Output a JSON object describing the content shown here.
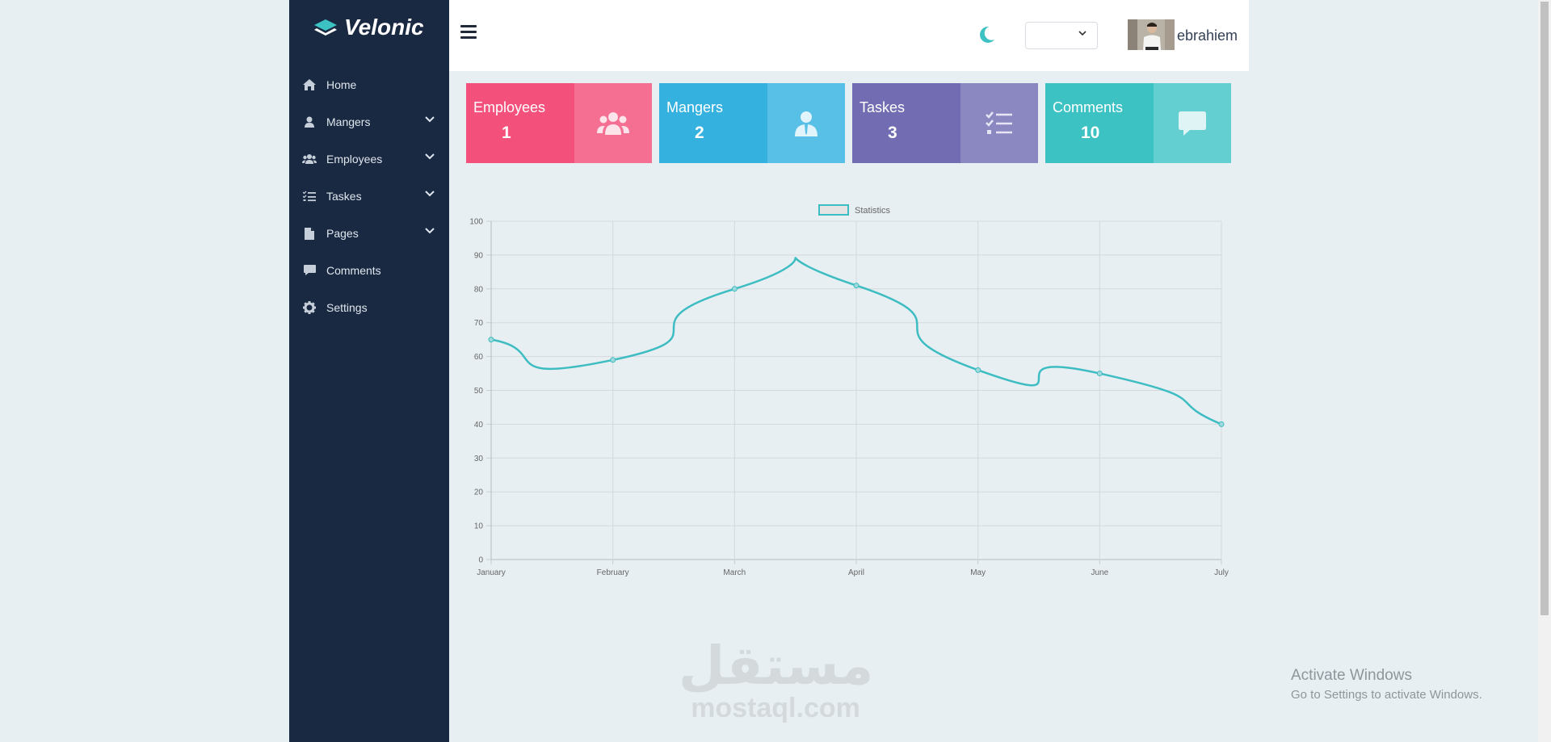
{
  "brand": {
    "name": "Velonic"
  },
  "sidebar": {
    "items": [
      {
        "label": "Home",
        "icon": "home-icon",
        "has_submenu": false
      },
      {
        "label": "Mangers",
        "icon": "user-icon",
        "has_submenu": true
      },
      {
        "label": "Employees",
        "icon": "users-icon",
        "has_submenu": true
      },
      {
        "label": "Taskes",
        "icon": "checklist-icon",
        "has_submenu": true
      },
      {
        "label": "Pages",
        "icon": "file-icon",
        "has_submenu": true
      },
      {
        "label": "Comments",
        "icon": "comment-icon",
        "has_submenu": false
      },
      {
        "label": "Settings",
        "icon": "gear-icon",
        "has_submenu": false
      }
    ]
  },
  "header": {
    "user_name": "ebrahiem",
    "language_select_value": "",
    "theme_icon": "moon-icon",
    "menu_icon": "hamburger-icon"
  },
  "cards": [
    {
      "label": "Employees",
      "value": "1",
      "icon": "users-icon",
      "color": "#f4507c",
      "icon_bg": "#f56f93"
    },
    {
      "label": "Mangers",
      "value": "2",
      "icon": "manager-icon",
      "color": "#35b1e0",
      "icon_bg": "#58c0e6"
    },
    {
      "label": "Taskes",
      "value": "3",
      "icon": "checklist-icon",
      "color": "#726db2",
      "icon_bg": "#8b87c1"
    },
    {
      "label": "Comments",
      "value": "10",
      "icon": "comment-icon",
      "color": "#3dc2c4",
      "icon_bg": "#63cfd1"
    }
  ],
  "chart_data": {
    "type": "line",
    "legend": {
      "label": "Statistics",
      "position": "top"
    },
    "x": [
      "January",
      "February",
      "March",
      "April",
      "May",
      "June",
      "July"
    ],
    "series": [
      {
        "name": "Statistics",
        "values": [
          65,
          59,
          80,
          81,
          56,
          55,
          40
        ],
        "color": "#3dbdc2"
      }
    ],
    "ylim": [
      0,
      100
    ],
    "yticks": [
      "0",
      "10",
      "20",
      "30",
      "40",
      "50",
      "60",
      "70",
      "80",
      "90",
      "100"
    ],
    "grid": true
  },
  "watermark": {
    "arabic": "مستقل",
    "text": "mostaql.com"
  },
  "os_notice": {
    "title": "Activate Windows",
    "subtitle": "Go to Settings to activate Windows."
  }
}
